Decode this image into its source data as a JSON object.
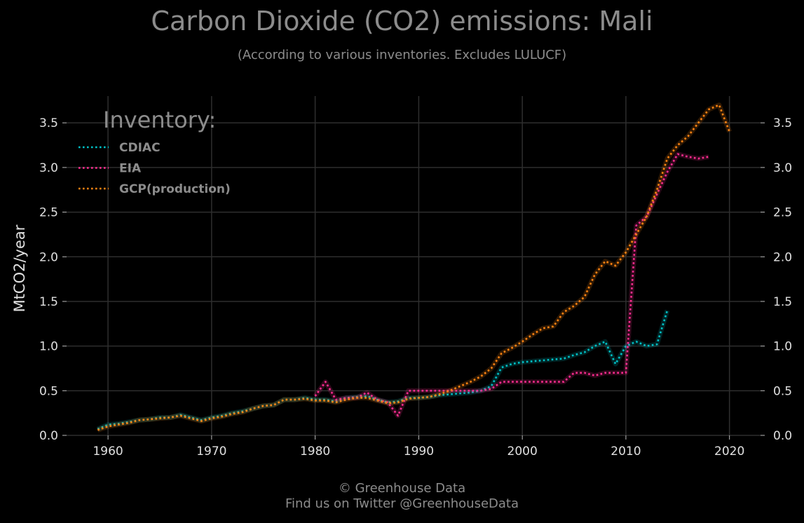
{
  "header": {
    "title": "Carbon Dioxide (CO2) emissions: Mali",
    "subtitle": "(According to various inventories. Excludes LULUCF)"
  },
  "footer": {
    "line1": "© Greenhouse Data",
    "line2": "Find us on Twitter @GreenhouseData"
  },
  "chart_data": {
    "type": "line",
    "title": "Carbon Dioxide (CO2) emissions: Mali",
    "subtitle": "(According to various inventories. Excludes LULUCF)",
    "ylabel": "MtCO2/year",
    "xlabel": "",
    "xlim": [
      1956,
      2023
    ],
    "ylim": [
      0,
      3.8
    ],
    "x_ticks": [
      1960,
      1970,
      1980,
      1990,
      2000,
      2010,
      2020
    ],
    "x_tick_labels": [
      "1960",
      "1970",
      "1980",
      "1990",
      "2000",
      "2010",
      "2020"
    ],
    "y_ticks": [
      0,
      0.5,
      1,
      1.5,
      2,
      2.5,
      3,
      3.5
    ],
    "y_tick_labels": [
      "0.0",
      "0.5",
      "1.0",
      "1.5",
      "2.0",
      "2.5",
      "3.0",
      "3.5"
    ],
    "grid": true,
    "legend": {
      "title": "Inventory:",
      "placement": "top-left"
    },
    "colors": {
      "background": "#000000",
      "grid": "#2e2e2e",
      "text": "#8c8c8c",
      "tick": "#e0e0e0"
    },
    "series": [
      {
        "name": "CDIAC",
        "color": "#00c2c7",
        "x": [
          1959,
          1960,
          1961,
          1962,
          1963,
          1964,
          1965,
          1966,
          1967,
          1968,
          1969,
          1970,
          1971,
          1972,
          1973,
          1974,
          1975,
          1976,
          1977,
          1978,
          1979,
          1980,
          1981,
          1982,
          1983,
          1984,
          1985,
          1986,
          1987,
          1988,
          1989,
          1990,
          1991,
          1992,
          1993,
          1994,
          1995,
          1996,
          1997,
          1998,
          1999,
          2000,
          2001,
          2002,
          2003,
          2004,
          2005,
          2006,
          2007,
          2008,
          2009,
          2010,
          2011,
          2012,
          2013,
          2014
        ],
        "y": [
          0.07,
          0.12,
          0.13,
          0.15,
          0.17,
          0.18,
          0.2,
          0.2,
          0.23,
          0.2,
          0.17,
          0.2,
          0.22,
          0.25,
          0.27,
          0.3,
          0.33,
          0.34,
          0.4,
          0.4,
          0.42,
          0.4,
          0.4,
          0.38,
          0.42,
          0.43,
          0.44,
          0.4,
          0.37,
          0.38,
          0.42,
          0.42,
          0.43,
          0.45,
          0.46,
          0.47,
          0.48,
          0.5,
          0.55,
          0.76,
          0.8,
          0.82,
          0.83,
          0.84,
          0.85,
          0.86,
          0.9,
          0.93,
          1.0,
          1.05,
          0.8,
          1.0,
          1.05,
          1.0,
          1.02,
          1.4
        ]
      },
      {
        "name": "EIA",
        "color": "#ff2d92",
        "x": [
          1980,
          1981,
          1982,
          1983,
          1984,
          1985,
          1986,
          1987,
          1988,
          1989,
          1990,
          1991,
          1992,
          1993,
          1994,
          1995,
          1996,
          1997,
          1998,
          1999,
          2000,
          2001,
          2002,
          2003,
          2004,
          2005,
          2006,
          2007,
          2008,
          2009,
          2010,
          2011,
          2012,
          2013,
          2014,
          2015,
          2016,
          2017,
          2018
        ],
        "y": [
          0.44,
          0.6,
          0.4,
          0.42,
          0.42,
          0.48,
          0.4,
          0.37,
          0.22,
          0.5,
          0.5,
          0.5,
          0.5,
          0.5,
          0.5,
          0.5,
          0.5,
          0.52,
          0.6,
          0.6,
          0.6,
          0.6,
          0.6,
          0.6,
          0.6,
          0.7,
          0.7,
          0.67,
          0.7,
          0.7,
          0.7,
          2.35,
          2.45,
          2.7,
          2.95,
          3.15,
          3.12,
          3.1,
          3.12
        ]
      },
      {
        "name": "GCP(production)",
        "color": "#ff8412",
        "x": [
          1959,
          1960,
          1961,
          1962,
          1963,
          1964,
          1965,
          1966,
          1967,
          1968,
          1969,
          1970,
          1971,
          1972,
          1973,
          1974,
          1975,
          1976,
          1977,
          1978,
          1979,
          1980,
          1981,
          1982,
          1983,
          1984,
          1985,
          1986,
          1987,
          1988,
          1989,
          1990,
          1991,
          1992,
          1993,
          1994,
          1995,
          1996,
          1997,
          1998,
          1999,
          2000,
          2001,
          2002,
          2003,
          2004,
          2005,
          2006,
          2007,
          2008,
          2009,
          2010,
          2011,
          2012,
          2013,
          2014,
          2015,
          2016,
          2017,
          2018,
          2019,
          2020
        ],
        "y": [
          0.06,
          0.1,
          0.12,
          0.14,
          0.17,
          0.18,
          0.19,
          0.2,
          0.22,
          0.19,
          0.16,
          0.19,
          0.21,
          0.24,
          0.26,
          0.3,
          0.33,
          0.34,
          0.4,
          0.4,
          0.41,
          0.39,
          0.39,
          0.37,
          0.4,
          0.42,
          0.42,
          0.39,
          0.36,
          0.37,
          0.41,
          0.42,
          0.43,
          0.46,
          0.5,
          0.55,
          0.6,
          0.66,
          0.75,
          0.92,
          0.98,
          1.05,
          1.13,
          1.2,
          1.22,
          1.38,
          1.45,
          1.55,
          1.8,
          1.95,
          1.9,
          2.05,
          2.25,
          2.45,
          2.75,
          3.1,
          3.25,
          3.35,
          3.5,
          3.65,
          3.7,
          3.4
        ]
      }
    ]
  }
}
